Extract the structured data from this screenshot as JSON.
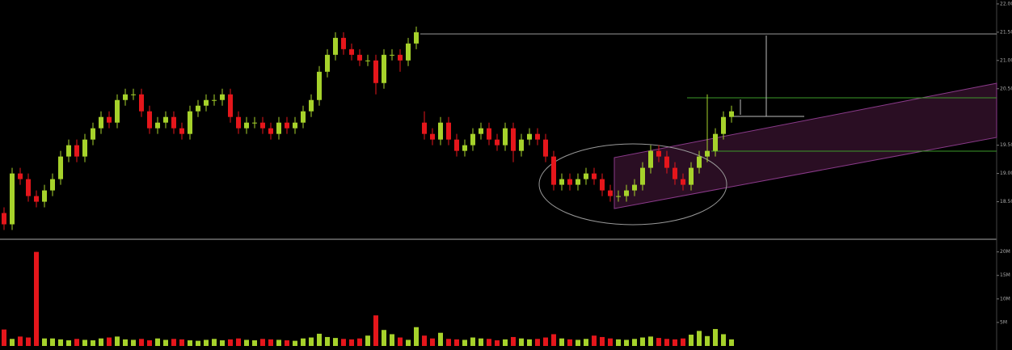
{
  "chart_data": [
    {
      "type": "candlestick",
      "up_color": "#a6d22b",
      "down_color": "#e5161b",
      "open": [
        18.3,
        18.1,
        19.0,
        18.9,
        18.6,
        18.5,
        18.7,
        18.9,
        19.3,
        19.5,
        19.3,
        19.6,
        19.8,
        20.0,
        19.9,
        20.3,
        20.4,
        20.4,
        20.1,
        19.8,
        19.9,
        20.0,
        19.8,
        19.7,
        20.1,
        20.2,
        20.3,
        20.3,
        20.4,
        20.0,
        19.8,
        19.9,
        19.9,
        19.8,
        19.7,
        19.9,
        19.8,
        19.9,
        20.1,
        20.3,
        20.8,
        21.1,
        21.4,
        21.2,
        21.1,
        21.0,
        21.0,
        20.6,
        21.1,
        21.1,
        21.0,
        21.3,
        19.9,
        19.7,
        19.6,
        19.9,
        19.6,
        19.4,
        19.5,
        19.7,
        19.8,
        19.6,
        19.5,
        19.8,
        19.4,
        19.6,
        19.7,
        19.6,
        19.3,
        18.8,
        18.9,
        18.8,
        18.9,
        19.0,
        18.9,
        18.7,
        18.6,
        18.6,
        18.7,
        18.8,
        19.1,
        19.4,
        19.3,
        19.1,
        18.9,
        18.8,
        19.1,
        19.3,
        19.4,
        19.7,
        20.0
      ],
      "high": [
        18.4,
        19.1,
        19.1,
        19.0,
        18.7,
        18.8,
        19.0,
        19.4,
        19.6,
        19.6,
        19.7,
        19.9,
        20.1,
        20.1,
        20.4,
        20.5,
        20.5,
        20.5,
        20.2,
        20.0,
        20.1,
        20.1,
        19.9,
        20.2,
        20.3,
        20.4,
        20.4,
        20.5,
        20.5,
        20.1,
        20.0,
        20.0,
        20.0,
        19.9,
        20.0,
        20.0,
        20.0,
        20.2,
        20.4,
        20.9,
        21.2,
        21.5,
        21.5,
        21.3,
        21.2,
        21.1,
        21.1,
        21.2,
        21.2,
        21.2,
        21.4,
        21.6,
        20.1,
        19.8,
        20.0,
        20.0,
        19.7,
        19.6,
        19.8,
        19.9,
        19.9,
        19.7,
        19.9,
        19.9,
        19.7,
        19.8,
        19.8,
        19.7,
        19.4,
        19.0,
        19.0,
        19.0,
        19.1,
        19.1,
        19.0,
        18.8,
        18.7,
        18.8,
        18.9,
        19.2,
        19.5,
        19.5,
        19.4,
        19.2,
        19.0,
        19.2,
        19.4,
        20.4,
        19.8,
        20.1,
        20.2
      ],
      "low": [
        18.0,
        18.0,
        18.8,
        18.5,
        18.4,
        18.4,
        18.6,
        18.8,
        19.2,
        19.2,
        19.2,
        19.5,
        19.7,
        19.8,
        19.8,
        20.2,
        20.3,
        20.0,
        19.7,
        19.7,
        19.8,
        19.7,
        19.6,
        19.6,
        20.0,
        20.1,
        20.2,
        20.2,
        19.9,
        19.7,
        19.7,
        19.8,
        19.7,
        19.6,
        19.6,
        19.7,
        19.7,
        19.8,
        20.0,
        20.2,
        20.7,
        21.0,
        21.1,
        21.0,
        20.9,
        20.9,
        20.4,
        20.5,
        21.0,
        20.8,
        20.9,
        21.2,
        19.6,
        19.5,
        19.5,
        19.5,
        19.3,
        19.3,
        19.4,
        19.6,
        19.5,
        19.4,
        19.4,
        19.2,
        19.3,
        19.5,
        19.5,
        19.2,
        18.7,
        18.7,
        18.7,
        18.7,
        18.8,
        18.8,
        18.6,
        18.5,
        18.5,
        18.5,
        18.6,
        18.7,
        19.0,
        19.2,
        19.0,
        18.8,
        18.7,
        18.7,
        19.0,
        19.2,
        19.3,
        19.6,
        19.9
      ],
      "close": [
        18.1,
        19.0,
        18.9,
        18.6,
        18.5,
        18.7,
        18.9,
        19.3,
        19.5,
        19.3,
        19.6,
        19.8,
        20.0,
        19.9,
        20.3,
        20.4,
        20.4,
        20.1,
        19.8,
        19.9,
        20.0,
        19.8,
        19.7,
        20.1,
        20.2,
        20.3,
        20.3,
        20.4,
        20.0,
        19.8,
        19.9,
        19.9,
        19.8,
        19.7,
        19.9,
        19.8,
        19.9,
        20.1,
        20.3,
        20.8,
        21.1,
        21.4,
        21.2,
        21.1,
        21.0,
        21.0,
        20.6,
        21.1,
        21.1,
        21.0,
        21.3,
        21.5,
        19.7,
        19.6,
        19.9,
        19.6,
        19.4,
        19.5,
        19.7,
        19.8,
        19.6,
        19.5,
        19.8,
        19.4,
        19.6,
        19.7,
        19.6,
        19.3,
        18.8,
        18.9,
        18.8,
        18.9,
        19.0,
        18.9,
        18.7,
        18.6,
        18.6,
        18.7,
        18.8,
        19.1,
        19.4,
        19.3,
        19.1,
        18.9,
        18.8,
        19.1,
        19.3,
        19.4,
        19.7,
        20.0,
        20.1
      ],
      "ylim": [
        17.85,
        22.07
      ],
      "yticks": [
        {
          "value": 18.5,
          "label": "18.50"
        },
        {
          "value": 19,
          "label": "19.00"
        },
        {
          "value": 19.5,
          "label": "19.50"
        },
        {
          "value": 20.5,
          "label": "20.50"
        },
        {
          "value": 21,
          "label": "21.00"
        },
        {
          "value": 21.5,
          "label": "21.50"
        },
        {
          "value": 22,
          "label": "22.00"
        }
      ]
    },
    {
      "type": "bar",
      "values": [
        3500000,
        1500000,
        2000000,
        1800000,
        20000000,
        1600000,
        1600000,
        1400000,
        1200000,
        1500000,
        1300000,
        1200000,
        1600000,
        1800000,
        2000000,
        1400000,
        1300000,
        1500000,
        1200000,
        1600000,
        1300000,
        1500000,
        1400000,
        1200000,
        1100000,
        1300000,
        1500000,
        1200000,
        1400000,
        1600000,
        1300000,
        1200000,
        1500000,
        1400000,
        1300000,
        1200000,
        1100000,
        1600000,
        1800000,
        2600000,
        1900000,
        1700000,
        1500000,
        1400000,
        1600000,
        2200000,
        6500000,
        3400000,
        2500000,
        1800000,
        1300000,
        4000000,
        2200000,
        1600000,
        2800000,
        1500000,
        1400000,
        1300000,
        1800000,
        1600000,
        1500000,
        1200000,
        1400000,
        1900000,
        1600000,
        1400000,
        1500000,
        1800000,
        2500000,
        1600000,
        1400000,
        1300000,
        1500000,
        2200000,
        1900000,
        1600000,
        1400000,
        1300000,
        1500000,
        1800000,
        2000000,
        1700000,
        1500000,
        1400000,
        1600000,
        2400000,
        3200000,
        2100000,
        3600000,
        2500000,
        1400000
      ],
      "ylim": [
        0,
        22000000
      ],
      "yticks": [
        {
          "value": 5000000,
          "label": "5M"
        },
        {
          "value": 10000000,
          "label": "10M"
        },
        {
          "value": 15000000,
          "label": "15M"
        },
        {
          "value": 20000000,
          "label": "20M"
        }
      ]
    }
  ]
}
